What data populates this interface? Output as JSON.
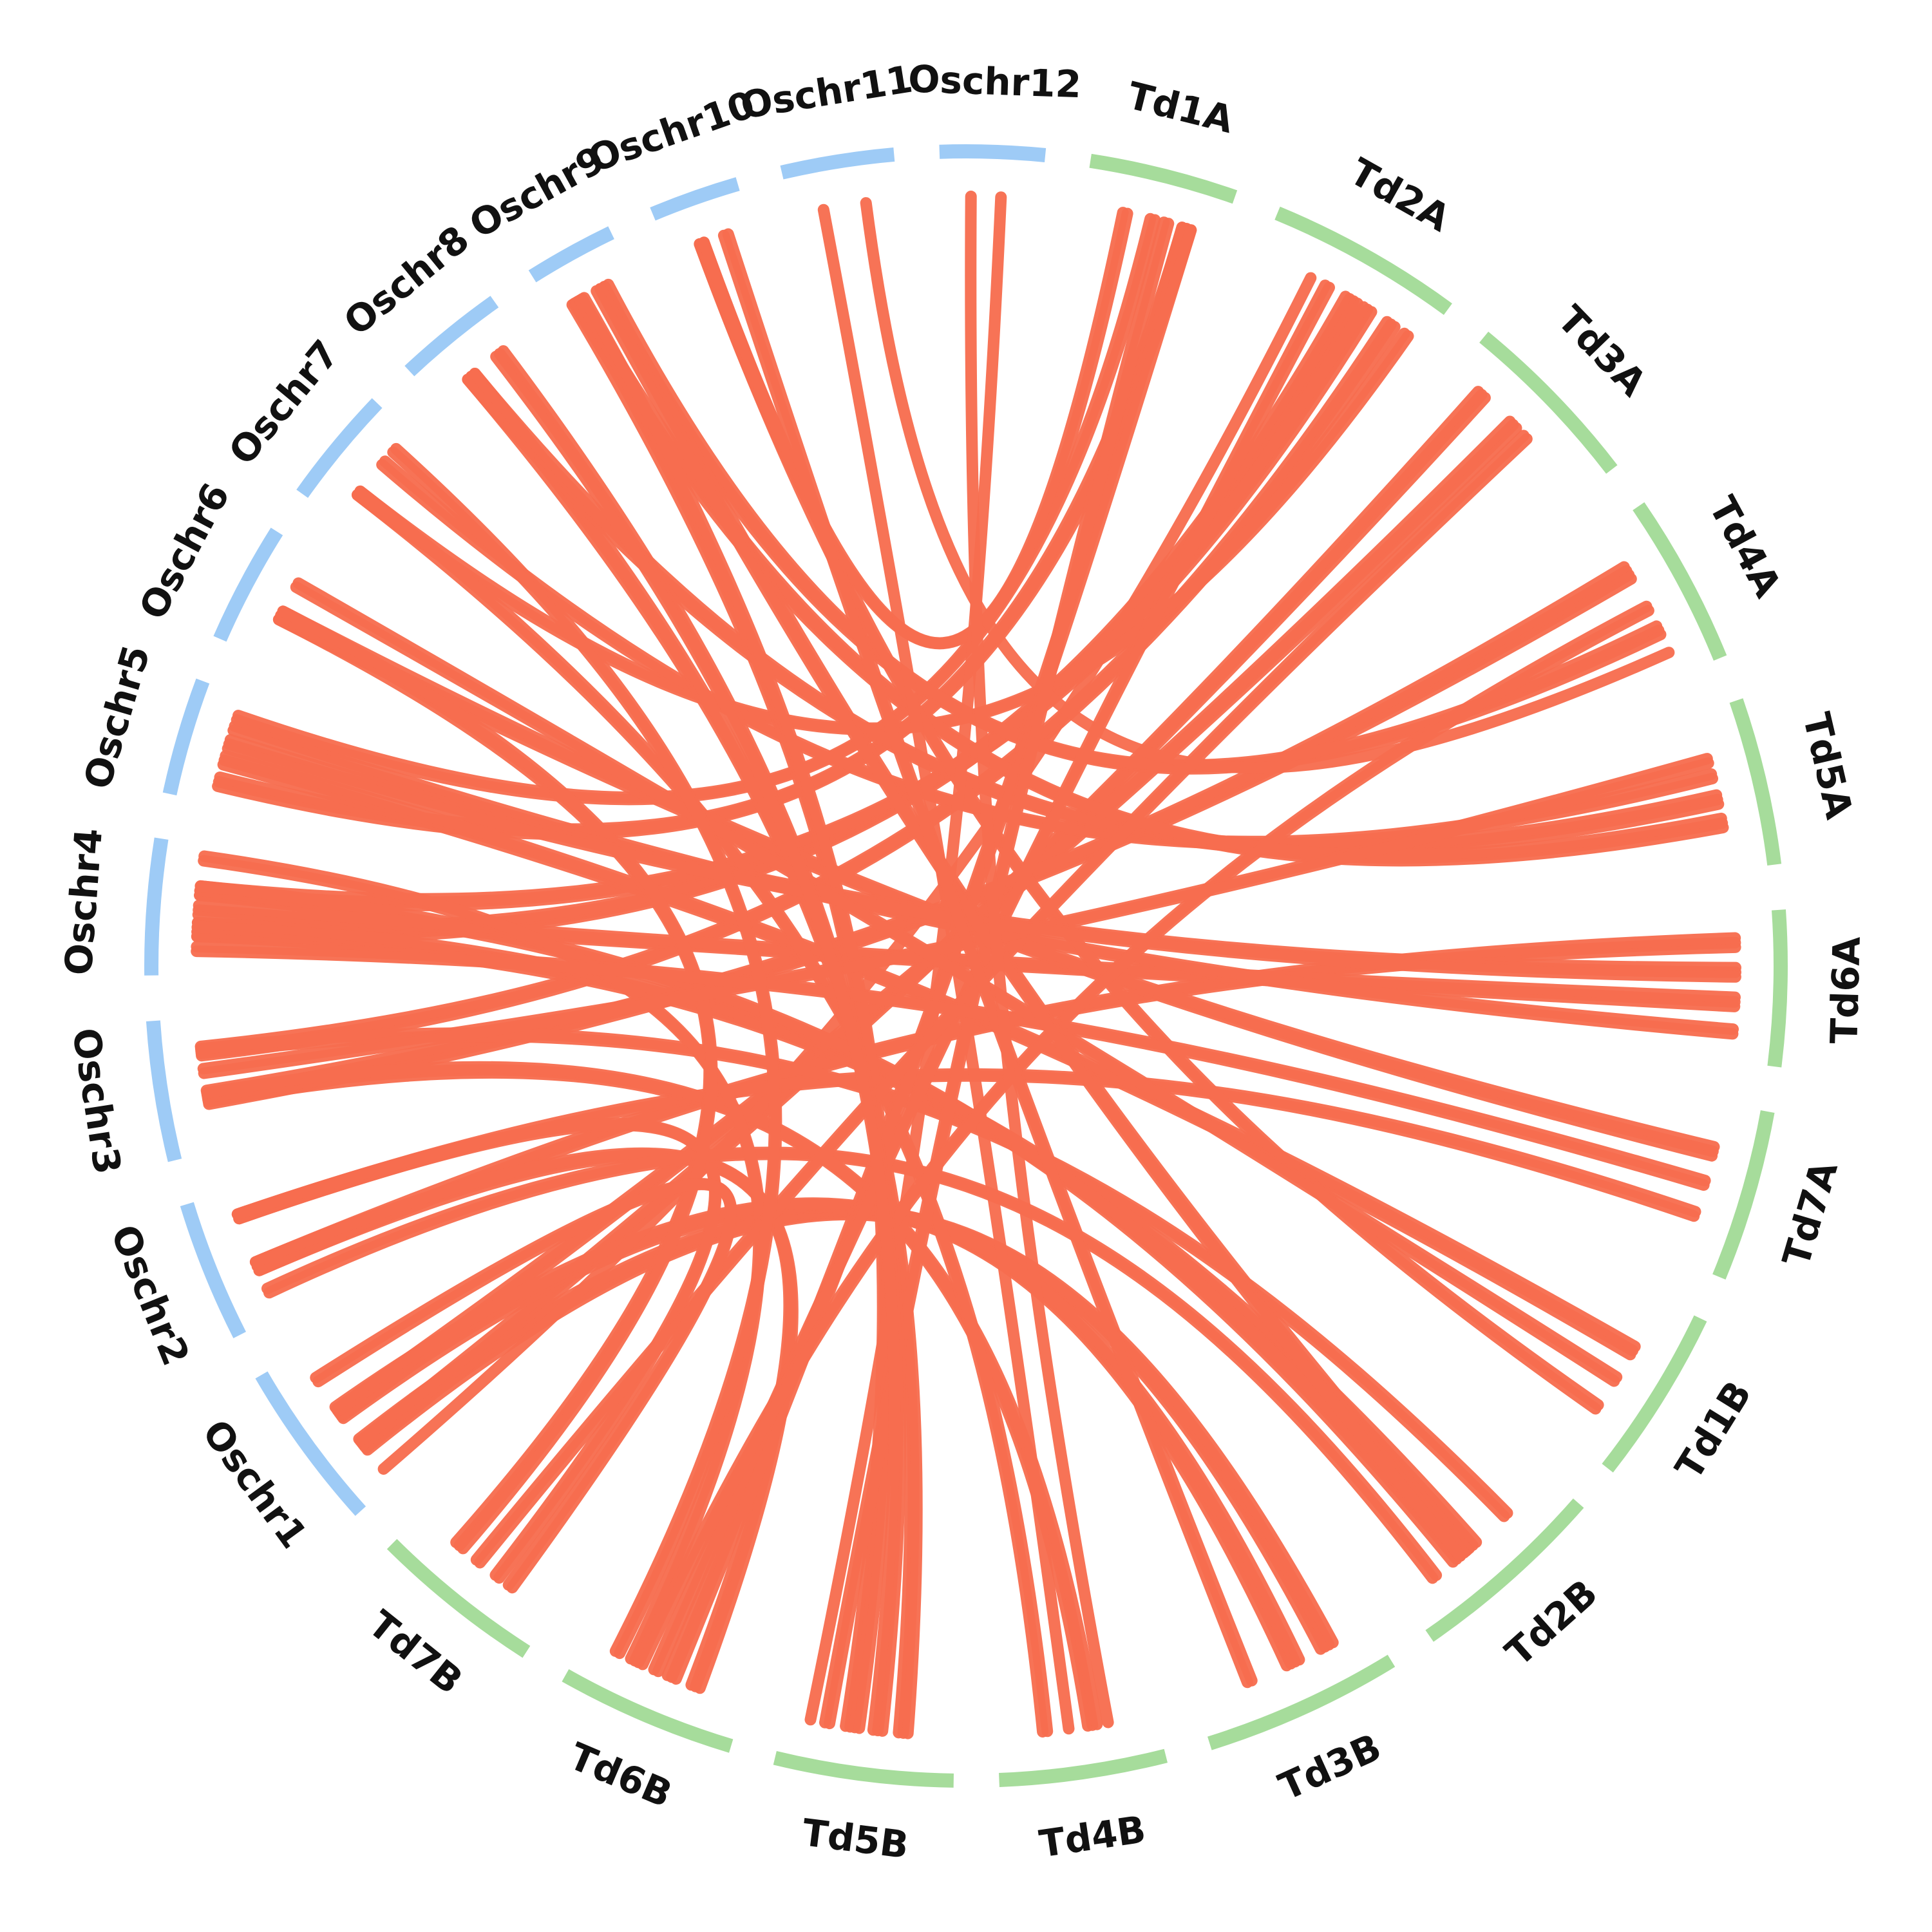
{
  "colors": {
    "rice": "#9ecbf6",
    "wheat": "#a6dc9b",
    "link": "#f76d4f"
  },
  "chromosomes": [
    {
      "name": "Oschr1",
      "genome": "rice",
      "length": 43
    },
    {
      "name": "Oschr2",
      "genome": "rice",
      "length": 36
    },
    {
      "name": "Oschr3",
      "genome": "rice",
      "length": 36
    },
    {
      "name": "Oschr4",
      "genome": "rice",
      "length": 35
    },
    {
      "name": "Oschr5",
      "genome": "rice",
      "length": 30
    },
    {
      "name": "Oschr6",
      "genome": "rice",
      "length": 31
    },
    {
      "name": "Oschr7",
      "genome": "rice",
      "length": 30
    },
    {
      "name": "Oschr8",
      "genome": "rice",
      "length": 28
    },
    {
      "name": "Oschr9",
      "genome": "rice",
      "length": 23
    },
    {
      "name": "Oschr10",
      "genome": "rice",
      "length": 23
    },
    {
      "name": "Oschr11",
      "genome": "rice",
      "length": 29
    },
    {
      "name": "Oschr12",
      "genome": "rice",
      "length": 27
    },
    {
      "name": "Td1A",
      "genome": "wheat",
      "length": 38
    },
    {
      "name": "Td2A",
      "genome": "wheat",
      "length": 50
    },
    {
      "name": "Td3A",
      "genome": "wheat",
      "length": 47
    },
    {
      "name": "Td4A",
      "genome": "wheat",
      "length": 44
    },
    {
      "name": "Td5A",
      "genome": "wheat",
      "length": 43
    },
    {
      "name": "Td6A",
      "genome": "wheat",
      "length": 40
    },
    {
      "name": "Td7A",
      "genome": "wheat",
      "length": 44
    },
    {
      "name": "Td1B",
      "genome": "wheat",
      "length": 45
    },
    {
      "name": "Td2B",
      "genome": "wheat",
      "length": 51
    },
    {
      "name": "Td3B",
      "genome": "wheat",
      "length": 51
    },
    {
      "name": "Td4B",
      "genome": "wheat",
      "length": 43
    },
    {
      "name": "Td5B",
      "genome": "wheat",
      "length": 46
    },
    {
      "name": "Td6B",
      "genome": "wheat",
      "length": 46
    },
    {
      "name": "Td7B",
      "genome": "wheat",
      "length": 44
    }
  ],
  "links": [
    {
      "from": "Oschr1",
      "from_pos": 0.3,
      "to": "Td3B",
      "to_pos": 0.25,
      "count": 4
    },
    {
      "from": "Oschr1",
      "from_pos": 0.3,
      "to": "Td3A",
      "to_pos": 0.2,
      "count": 3
    },
    {
      "from": "Oschr1",
      "from_pos": 0.55,
      "to": "Td3A",
      "to_pos": 0.45,
      "count": 3
    },
    {
      "from": "Oschr1",
      "from_pos": 0.55,
      "to": "Td3B",
      "to_pos": 0.45,
      "count": 4
    },
    {
      "from": "Oschr1",
      "from_pos": 0.1,
      "to": "Td2A",
      "to_pos": 0.3,
      "count": 1
    },
    {
      "from": "Oschr2",
      "from_pos": 0.4,
      "to": "Td6A",
      "to_pos": 0.2,
      "count": 3
    },
    {
      "from": "Oschr2",
      "from_pos": 0.4,
      "to": "Td6B",
      "to_pos": 0.3,
      "count": 3
    },
    {
      "from": "Oschr2",
      "from_pos": 0.8,
      "to": "Td7A",
      "to_pos": 0.7,
      "count": 2
    },
    {
      "from": "Oschr2",
      "from_pos": 0.8,
      "to": "Td7B",
      "to_pos": 0.4,
      "count": 2
    },
    {
      "from": "Oschr2",
      "from_pos": 0.2,
      "to": "Td2B",
      "to_pos": 0.8,
      "count": 2
    },
    {
      "from": "Oschr3",
      "from_pos": 0.4,
      "to": "Td4A",
      "to_pos": 0.3,
      "count": 4
    },
    {
      "from": "Oschr3",
      "from_pos": 0.4,
      "to": "Td4B",
      "to_pos": 0.4,
      "count": 3
    },
    {
      "from": "Oschr3",
      "from_pos": 0.75,
      "to": "Td2A",
      "to_pos": 0.8,
      "count": 3
    },
    {
      "from": "Oschr3",
      "from_pos": 0.75,
      "to": "Td2B",
      "to_pos": 0.3,
      "count": 2
    },
    {
      "from": "Oschr4",
      "from_pos": 0.35,
      "to": "Td2A",
      "to_pos": 0.55,
      "count": 4
    },
    {
      "from": "Oschr4",
      "from_pos": 0.35,
      "to": "Td2B",
      "to_pos": 0.55,
      "count": 4
    },
    {
      "from": "Oschr4",
      "from_pos": 0.65,
      "to": "Td2A",
      "to_pos": 0.65,
      "count": 3
    },
    {
      "from": "Oschr4",
      "from_pos": 0.65,
      "to": "Td2B",
      "to_pos": 0.65,
      "count": 3
    },
    {
      "from": "Oschr4",
      "from_pos": 0.5,
      "to": "Td6A",
      "to_pos": 0.6,
      "count": 3
    },
    {
      "from": "Oschr4",
      "from_pos": 0.9,
      "to": "Td6B",
      "to_pos": 0.7,
      "count": 2
    },
    {
      "from": "Oschr5",
      "from_pos": 0.2,
      "to": "Td1A",
      "to_pos": 0.75,
      "count": 3
    },
    {
      "from": "Oschr5",
      "from_pos": 0.4,
      "to": "Td1B",
      "to_pos": 0.35,
      "count": 3
    },
    {
      "from": "Oschr5",
      "from_pos": 0.7,
      "to": "Td6A",
      "to_pos": 0.8,
      "count": 2
    },
    {
      "from": "Oschr5",
      "from_pos": 0.8,
      "to": "Td1A",
      "to_pos": 0.5,
      "count": 2
    },
    {
      "from": "Oschr6",
      "from_pos": 0.4,
      "to": "Td7A",
      "to_pos": 0.3,
      "count": 3
    },
    {
      "from": "Oschr6",
      "from_pos": 0.4,
      "to": "Td7B",
      "to_pos": 0.7,
      "count": 3
    },
    {
      "from": "Oschr7",
      "from_pos": 0.3,
      "to": "Td2A",
      "to_pos": 0.9,
      "count": 2
    },
    {
      "from": "Oschr7",
      "from_pos": 0.3,
      "to": "Td4B",
      "to_pos": 0.7,
      "count": 2
    },
    {
      "from": "Oschr7",
      "from_pos": 0.65,
      "to": "Td5A",
      "to_pos": 0.4,
      "count": 2
    },
    {
      "from": "Oschr8",
      "from_pos": 0.4,
      "to": "Td5B",
      "to_pos": 0.3,
      "count": 3
    },
    {
      "from": "Oschr8",
      "from_pos": 0.4,
      "to": "Td5A",
      "to_pos": 0.55,
      "count": 3
    },
    {
      "from": "Oschr9",
      "from_pos": 0.3,
      "to": "Td5A",
      "to_pos": 0.7,
      "count": 3
    },
    {
      "from": "Oschr9",
      "from_pos": 0.3,
      "to": "Td5B",
      "to_pos": 0.6,
      "count": 4
    },
    {
      "from": "Oschr9",
      "from_pos": 0.65,
      "to": "Td4A",
      "to_pos": 0.7,
      "count": 3
    },
    {
      "from": "Oschr10",
      "from_pos": 0.4,
      "to": "Td1B",
      "to_pos": 0.75,
      "count": 2
    },
    {
      "from": "Oschr10",
      "from_pos": 0.4,
      "to": "Td1A",
      "to_pos": 0.3,
      "count": 2
    },
    {
      "from": "Oschr11",
      "from_pos": 0.3,
      "to": "Td4B",
      "to_pos": 0.55,
      "count": 1
    },
    {
      "from": "Oschr11",
      "from_pos": 0.7,
      "to": "Td4A",
      "to_pos": 0.85,
      "count": 1
    },
    {
      "from": "Oschr12",
      "from_pos": 0.6,
      "to": "Td5B",
      "to_pos": 0.85,
      "count": 1
    },
    {
      "from": "Td1A",
      "from_pos": 0.75,
      "to": "Td6B",
      "to_pos": 0.45,
      "count": 3
    },
    {
      "from": "Td1A",
      "from_pos": 0.6,
      "to": "Td5B",
      "to_pos": 0.75,
      "count": 2
    },
    {
      "from": "Td2A",
      "from_pos": 0.4,
      "to": "Td6B",
      "to_pos": 0.55,
      "count": 2
    },
    {
      "from": "Td3A",
      "from_pos": 0.55,
      "to": "Td7B",
      "to_pos": 0.55,
      "count": 2
    },
    {
      "from": "Td4A",
      "from_pos": 0.55,
      "to": "Td6B",
      "to_pos": 0.65,
      "count": 2
    },
    {
      "from": "Td5A",
      "from_pos": 0.3,
      "to": "Oschr3",
      "to_pos": 0.6,
      "count": 2
    },
    {
      "from": "Td6A",
      "from_pos": 0.4,
      "to": "Oschr5",
      "to_pos": 0.55,
      "count": 3
    },
    {
      "from": "Td7A",
      "from_pos": 0.5,
      "to": "Oschr4",
      "to_pos": 0.2,
      "count": 2
    },
    {
      "from": "Td1B",
      "from_pos": 0.55,
      "to": "Oschr6",
      "to_pos": 0.7,
      "count": 2
    },
    {
      "from": "Td2B",
      "from_pos": 0.6,
      "to": "Oschr9",
      "to_pos": 0.6,
      "count": 3
    },
    {
      "from": "Td3B",
      "from_pos": 0.7,
      "to": "Oschr10",
      "to_pos": 0.7,
      "count": 2
    },
    {
      "from": "Td4B",
      "from_pos": 0.3,
      "to": "Oschr12",
      "to_pos": 0.3,
      "count": 1
    },
    {
      "from": "Td5B",
      "from_pos": 0.45,
      "to": "Oschr8",
      "to_pos": 0.75,
      "count": 3
    },
    {
      "from": "Td6B",
      "from_pos": 0.8,
      "to": "Oschr7",
      "to_pos": 0.8,
      "count": 2
    },
    {
      "from": "Td7B",
      "from_pos": 0.3,
      "to": "Oschr1",
      "to_pos": 0.8,
      "count": 2
    }
  ]
}
